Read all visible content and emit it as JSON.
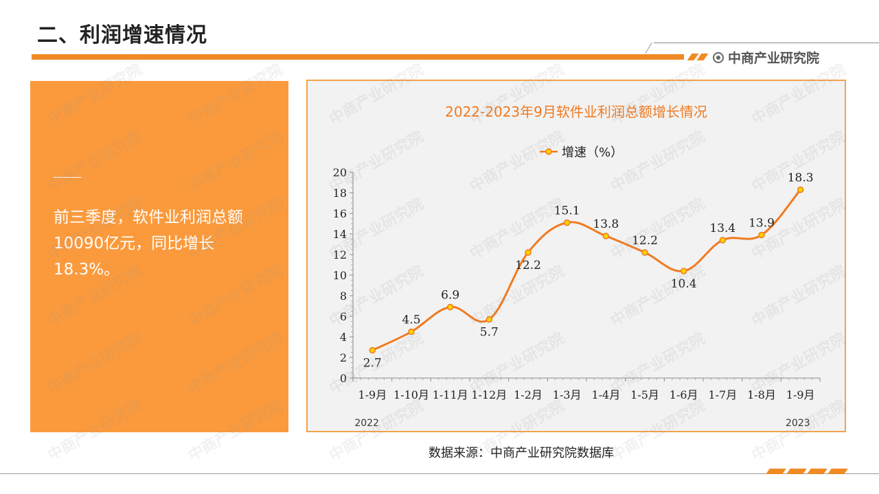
{
  "page": {
    "title": "二、利润增速情况",
    "brand": "中商产业研究院",
    "summary": "前三季度，软件业利润总额10090亿元，同比增长18.3%。",
    "source": "数据来源：中商产业研究院数据库",
    "watermark": "中商产业研究院"
  },
  "colors": {
    "accent": "#f08a24",
    "card": "#fb9a3c",
    "chart_title": "#f07a20",
    "line": "#f07a20",
    "marker_fill": "#ffd400"
  },
  "chart_data": {
    "type": "line",
    "title": "2022-2023年9月软件业利润总额增长情况",
    "categories": [
      "1-9月",
      "1-10月",
      "1-11月",
      "1-12月",
      "1-2月",
      "1-3月",
      "1-4月",
      "1-5月",
      "1-6月",
      "1-7月",
      "1-8月",
      "1-9月"
    ],
    "series": [
      {
        "name": "增速（%）",
        "values": [
          2.7,
          4.5,
          6.9,
          5.7,
          12.2,
          15.1,
          13.8,
          12.2,
          10.4,
          13.4,
          13.9,
          18.3
        ]
      }
    ],
    "year_labels": [
      "2022",
      "2023"
    ],
    "ylim": [
      0,
      20
    ],
    "yticks": [
      0,
      2,
      4,
      6,
      8,
      10,
      12,
      14,
      16,
      18,
      20
    ],
    "legend": "top-center",
    "grid": false,
    "smooth": true
  }
}
